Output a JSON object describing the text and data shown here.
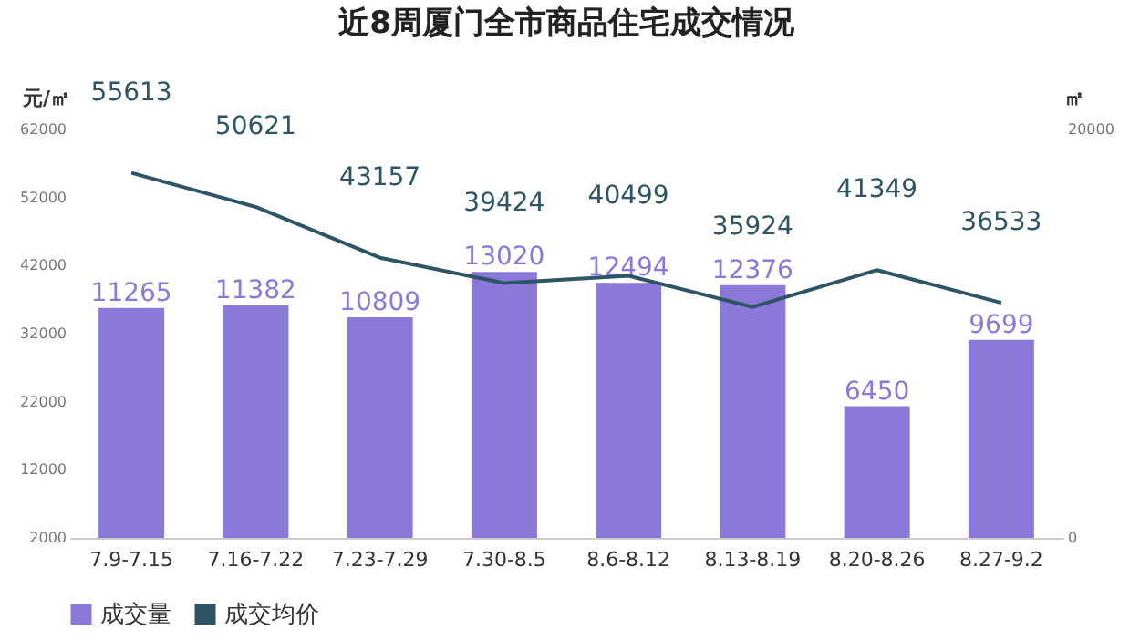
{
  "chart_data": {
    "type": "bar",
    "title": "近8周厦门全市商品住宅成交情况",
    "ylabel": "元/㎡",
    "y2label": "㎡",
    "categories": [
      "7.9-7.15",
      "7.16-7.22",
      "7.23-7.29",
      "7.30-8.5",
      "8.6-8.12",
      "8.13-8.19",
      "8.20-8.26",
      "8.27-9.2"
    ],
    "series": [
      {
        "name": "成交量",
        "type": "bar",
        "axis": "y2",
        "color": "#8b78d9",
        "values": [
          11265,
          11382,
          10809,
          13020,
          12494,
          12376,
          6450,
          9699
        ]
      },
      {
        "name": "成交均价",
        "type": "line",
        "color": "#2e5566",
        "values": [
          55613,
          50621,
          43157,
          39424,
          40499,
          35924,
          41349,
          36533
        ]
      }
    ],
    "ylim": [
      2000,
      62000
    ],
    "yticks": [
      2000,
      12000,
      22000,
      32000,
      42000,
      52000,
      62000
    ],
    "y2lim": [
      0,
      20000
    ],
    "y2ticks": [
      0,
      20000
    ],
    "data_labels": true,
    "grid": false,
    "legend": "bottom",
    "marker": "none"
  }
}
